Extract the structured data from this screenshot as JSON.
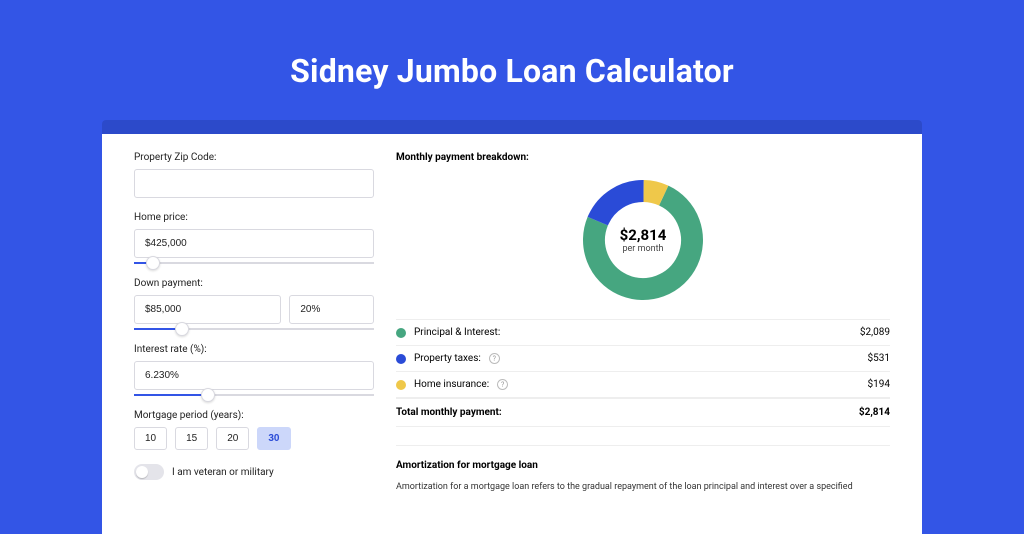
{
  "page": {
    "title": "Sidney Jumbo Loan Calculator",
    "background_color": "#3355e6",
    "card_background": "#ffffff"
  },
  "form": {
    "zip": {
      "label": "Property Zip Code:",
      "value": ""
    },
    "home_price": {
      "label": "Home price:",
      "value": "$425,000",
      "slider_fill_pct": 8
    },
    "down_payment": {
      "label": "Down payment:",
      "amount": "$85,000",
      "percent": "20%",
      "slider_fill_pct": 20
    },
    "interest_rate": {
      "label": "Interest rate (%):",
      "value": "6.230%",
      "slider_fill_pct": 31
    },
    "mortgage_period": {
      "label": "Mortgage period (years):",
      "options": [
        "10",
        "15",
        "20",
        "30"
      ],
      "selected": "30"
    },
    "veteran_toggle": {
      "label": "I am veteran or military",
      "on": false
    }
  },
  "breakdown": {
    "header": "Monthly payment breakdown:",
    "donut": {
      "center_amount": "$2,814",
      "center_sub": "per month",
      "slices": [
        {
          "name": "principal_interest",
          "value": 2089,
          "pct": 74.2,
          "color": "#46a680"
        },
        {
          "name": "property_taxes",
          "value": 531,
          "pct": 18.9,
          "color": "#2a4bd7"
        },
        {
          "name": "home_insurance",
          "value": 194,
          "pct": 6.9,
          "color": "#efc84a"
        }
      ],
      "thickness": 22
    },
    "items": [
      {
        "label": "Principal & Interest:",
        "value": "$2,089",
        "color": "#46a680",
        "info": false
      },
      {
        "label": "Property taxes:",
        "value": "$531",
        "color": "#2a4bd7",
        "info": true
      },
      {
        "label": "Home insurance:",
        "value": "$194",
        "color": "#efc84a",
        "info": true
      }
    ],
    "total": {
      "label": "Total monthly payment:",
      "value": "$2,814"
    }
  },
  "amortization": {
    "title": "Amortization for mortgage loan",
    "text": "Amortization for a mortgage loan refers to the gradual repayment of the loan principal and interest over a specified"
  }
}
